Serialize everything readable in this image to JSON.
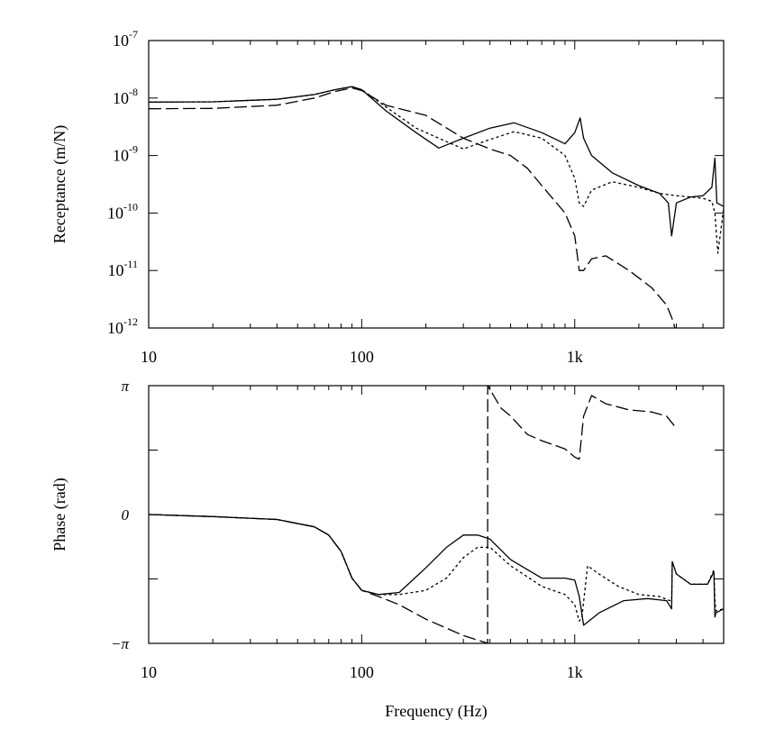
{
  "chart_data": [
    {
      "type": "line",
      "title": "",
      "xlabel": "",
      "ylabel": "Receptance (m/N)",
      "xscale": "log",
      "yscale": "log",
      "xlim": [
        10,
        5000
      ],
      "ylim": [
        1e-12,
        1e-07
      ],
      "xtick_labels": [
        "10",
        "100",
        "1k"
      ],
      "xticks": [
        10,
        100,
        1000
      ],
      "ytick_labels": [
        {
          "base": "10",
          "exp": "-12"
        },
        {
          "base": "10",
          "exp": "-11"
        },
        {
          "base": "10",
          "exp": "-10"
        },
        {
          "base": "10",
          "exp": "-9"
        },
        {
          "base": "10",
          "exp": "-8"
        },
        {
          "base": "10",
          "exp": "-7"
        }
      ],
      "yticks": [
        1e-12,
        1e-11,
        1e-10,
        1e-09,
        1e-08,
        1e-07
      ],
      "series": [
        {
          "name": "solid",
          "style": "solid",
          "x": [
            10,
            20,
            40,
            60,
            75,
            90,
            100,
            130,
            180,
            230,
            300,
            400,
            520,
            700,
            900,
            1000,
            1060,
            1100,
            1200,
            1500,
            2000,
            2500,
            2750,
            2850,
            3000,
            3500,
            4000,
            4400,
            4550,
            4650,
            5000
          ],
          "y": [
            8.5e-09,
            8.6e-09,
            9.5e-09,
            1.15e-08,
            1.4e-08,
            1.58e-08,
            1.4e-08,
            6e-09,
            2.5e-09,
            1.35e-09,
            2e-09,
            3e-09,
            3.7e-09,
            2.5e-09,
            1.6e-09,
            2.5e-09,
            4.5e-09,
            2e-09,
            1e-09,
            5e-10,
            3e-10,
            2.2e-10,
            1.5e-10,
            4e-11,
            1.5e-10,
            1.9e-10,
            2e-10,
            2.8e-10,
            9e-10,
            1.5e-10,
            1.3e-10
          ]
        },
        {
          "name": "dotted",
          "style": "dotted",
          "x": [
            10,
            20,
            40,
            60,
            75,
            90,
            100,
            130,
            180,
            230,
            300,
            400,
            520,
            700,
            900,
            1000,
            1050,
            1100,
            1200,
            1500,
            2000,
            2500,
            3000,
            3500,
            4000,
            4400,
            4550,
            4700,
            5000
          ],
          "y": [
            8.5e-09,
            8.6e-09,
            9.5e-09,
            1.15e-08,
            1.4e-08,
            1.58e-08,
            1.4e-08,
            7e-09,
            3e-09,
            2e-09,
            1.3e-09,
            1.9e-09,
            2.6e-09,
            2e-09,
            1e-09,
            4e-10,
            1.5e-10,
            1.3e-10,
            2.5e-10,
            3.5e-10,
            2.8e-10,
            2.2e-10,
            2e-10,
            1.9e-10,
            1.8e-10,
            1.6e-10,
            1e-10,
            2e-11,
            1.2e-10
          ]
        },
        {
          "name": "dashed",
          "style": "dashed",
          "x": [
            10,
            20,
            40,
            60,
            75,
            90,
            100,
            130,
            200,
            300,
            400,
            500,
            600,
            700,
            900,
            1000,
            1050,
            1100,
            1200,
            1400,
            1800,
            2300,
            2700,
            2900,
            2950
          ],
          "y": [
            6.5e-09,
            6.6e-09,
            7.5e-09,
            1e-08,
            1.3e-08,
            1.5e-08,
            1.35e-08,
            7.5e-09,
            5e-09,
            2e-09,
            1.3e-09,
            1e-09,
            6e-10,
            3e-10,
            1e-10,
            4e-11,
            1e-11,
            1e-11,
            1.6e-11,
            1.8e-11,
            1e-11,
            5e-12,
            2.5e-12,
            1.3e-12,
            1e-12
          ]
        }
      ]
    },
    {
      "type": "line",
      "title": "",
      "xlabel": "Frequency (Hz)",
      "ylabel": "Phase (rad)",
      "xscale": "log",
      "yscale": "linear",
      "xlim": [
        10,
        5000
      ],
      "ylim": [
        -3.14159,
        3.14159
      ],
      "xtick_labels": [
        "10",
        "100",
        "1k"
      ],
      "xticks": [
        10,
        100,
        1000
      ],
      "ytick_labels": [
        "−π",
        "0",
        "π"
      ],
      "yticks": [
        -3.14159,
        0,
        3.14159
      ],
      "series": [
        {
          "name": "solid",
          "style": "solid",
          "x": [
            10,
            20,
            40,
            60,
            70,
            80,
            90,
            100,
            120,
            150,
            200,
            250,
            300,
            350,
            400,
            500,
            700,
            900,
            1000,
            1050,
            1100,
            1300,
            1700,
            2200,
            2700,
            2850,
            2870,
            3000,
            3500,
            4200,
            4500,
            4550,
            4600,
            5000
          ],
          "y": [
            0,
            -0.05,
            -0.12,
            -0.3,
            -0.5,
            -0.9,
            -1.55,
            -1.85,
            -1.95,
            -1.9,
            -1.3,
            -0.8,
            -0.5,
            -0.5,
            -0.6,
            -1.1,
            -1.55,
            -1.55,
            -1.6,
            -2,
            -2.7,
            -2.4,
            -2.1,
            -2.05,
            -2.1,
            -2.3,
            -1.15,
            -1.45,
            -1.7,
            -1.7,
            -1.4,
            -2.5,
            -2.4,
            -2.3
          ]
        },
        {
          "name": "dotted",
          "style": "dotted",
          "x": [
            10,
            20,
            40,
            60,
            70,
            80,
            90,
            100,
            120,
            150,
            200,
            250,
            300,
            350,
            400,
            500,
            700,
            900,
            1000,
            1050,
            1080,
            1150,
            1300,
            1600,
            2000,
            2500,
            2800,
            2850,
            2870,
            3000,
            3500,
            4200,
            4500,
            4550,
            4600,
            5000
          ],
          "y": [
            0,
            -0.05,
            -0.12,
            -0.3,
            -0.5,
            -0.9,
            -1.55,
            -1.85,
            -1.95,
            -1.95,
            -1.85,
            -1.55,
            -1.05,
            -0.8,
            -0.8,
            -1.25,
            -1.75,
            -1.95,
            -2.2,
            -2.6,
            -2.5,
            -1.25,
            -1.45,
            -1.75,
            -1.95,
            -2,
            -2.1,
            -2.1,
            -1.15,
            -1.45,
            -1.7,
            -1.7,
            -1.35,
            -2.1,
            -2.35,
            -2.3
          ]
        },
        {
          "name": "dashed",
          "style": "dashed",
          "x": [
            10,
            20,
            40,
            60,
            70,
            80,
            90,
            100,
            120,
            150,
            200,
            300,
            390,
            390.5,
            400,
            450,
            500,
            600,
            700,
            900,
            1000,
            1050,
            1100,
            1200,
            1400,
            1800,
            2300,
            2700,
            2950
          ],
          "y": [
            0,
            -0.05,
            -0.12,
            -0.3,
            -0.5,
            -0.9,
            -1.55,
            -1.85,
            -2.0,
            -2.2,
            -2.55,
            -2.95,
            -3.14,
            3.14,
            3.05,
            2.6,
            2.4,
            1.95,
            1.8,
            1.6,
            1.4,
            1.35,
            2.4,
            2.9,
            2.7,
            2.55,
            2.5,
            2.4,
            2.15
          ]
        }
      ]
    }
  ]
}
